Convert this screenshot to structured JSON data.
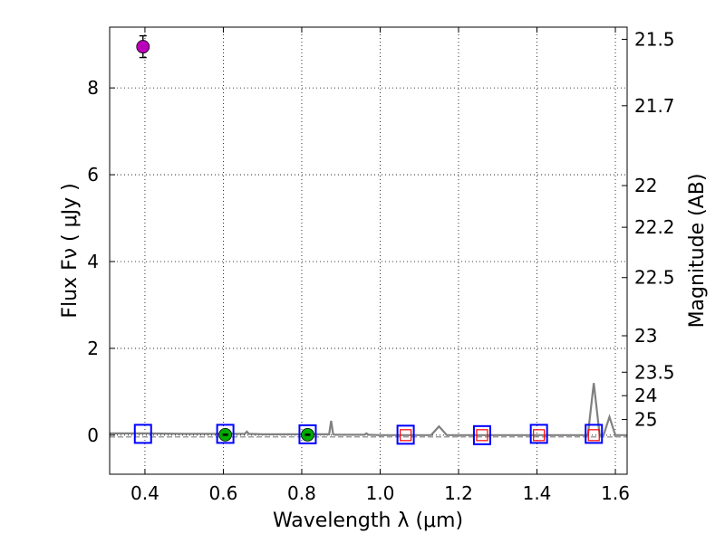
{
  "chart_data": {
    "type": "scatter",
    "xlabel": "Wavelength  λ (μm)",
    "ylabel": "Flux  Fν  ( μJy )",
    "ylabel_right": "Magnitude (AB)",
    "xlim": [
      0.31,
      1.63
    ],
    "ylim": [
      -0.9,
      9.4
    ],
    "x_ticks": [
      0.4,
      0.6,
      0.8,
      1.0,
      1.2,
      1.4,
      1.6
    ],
    "x_tick_labels": [
      "0.4",
      "0.6",
      "0.8",
      "1.0",
      "1.2",
      "1.4",
      "1.6"
    ],
    "y_ticks": [
      0,
      2,
      4,
      6,
      8
    ],
    "y_tick_labels": [
      "0",
      "2",
      "4",
      "6",
      "8"
    ],
    "right_ticks": [
      {
        "label": "21.5",
        "flux": 9.12
      },
      {
        "label": "21.7",
        "flux": 7.59
      },
      {
        "label": "22",
        "flux": 5.75
      },
      {
        "label": "22.2",
        "flux": 4.79
      },
      {
        "label": "22.5",
        "flux": 3.63
      },
      {
        "label": "23",
        "flux": 2.29
      },
      {
        "label": "23.5",
        "flux": 1.45
      },
      {
        "label": "24",
        "flux": 0.91
      },
      {
        "label": "25",
        "flux": 0.36
      }
    ],
    "grid": true,
    "series": [
      {
        "kind": "detection",
        "color": "#bb00bb",
        "points": [
          {
            "x": 0.395,
            "y": 8.95,
            "err": 0.25
          }
        ]
      },
      {
        "kind": "detection",
        "color": "#00aa00",
        "points": [
          {
            "x": 0.605,
            "y": 0.01,
            "err": 0.02
          },
          {
            "x": 0.815,
            "y": 0.01,
            "err": 0.02
          }
        ]
      },
      {
        "kind": "model_square",
        "color": "#0000ff",
        "points": [
          {
            "x": 0.395,
            "y": 0.03
          },
          {
            "x": 0.605,
            "y": 0.03
          },
          {
            "x": 0.815,
            "y": 0.02
          },
          {
            "x": 1.065,
            "y": 0.01
          },
          {
            "x": 1.26,
            "y": 0.0
          },
          {
            "x": 1.405,
            "y": 0.03
          },
          {
            "x": 1.545,
            "y": 0.03
          }
        ]
      },
      {
        "kind": "upper_limit_square",
        "color": "#ff0000",
        "points": [
          {
            "x": 1.065,
            "y": 0.0
          },
          {
            "x": 1.26,
            "y": 0.0
          },
          {
            "x": 1.405,
            "y": 0.0
          },
          {
            "x": 1.545,
            "y": 0.0
          }
        ]
      },
      {
        "kind": "sed_line",
        "color": "#808080",
        "x": [
          0.31,
          0.4,
          0.5,
          0.6,
          0.655,
          0.66,
          0.665,
          0.7,
          0.8,
          0.87,
          0.875,
          0.88,
          0.885,
          0.9,
          0.96,
          0.965,
          0.97,
          1.0,
          1.05,
          1.13,
          1.15,
          1.17,
          1.2,
          1.3,
          1.4,
          1.5,
          1.53,
          1.545,
          1.56,
          1.57,
          1.585,
          1.6,
          1.63
        ],
        "y": [
          0.04,
          0.04,
          0.03,
          0.03,
          0.03,
          0.08,
          0.03,
          0.02,
          0.02,
          0.02,
          0.33,
          0.02,
          0.01,
          0.01,
          0.01,
          0.04,
          0.01,
          0.0,
          0.0,
          0.0,
          0.2,
          0.0,
          0.0,
          0.0,
          0.0,
          0.0,
          0.0,
          1.2,
          0.0,
          0.0,
          0.42,
          0.0,
          0.0
        ]
      },
      {
        "kind": "zero_line",
        "color": "#808080",
        "x": [
          0.31,
          1.63
        ],
        "y": [
          -0.04,
          -0.04
        ]
      }
    ]
  }
}
